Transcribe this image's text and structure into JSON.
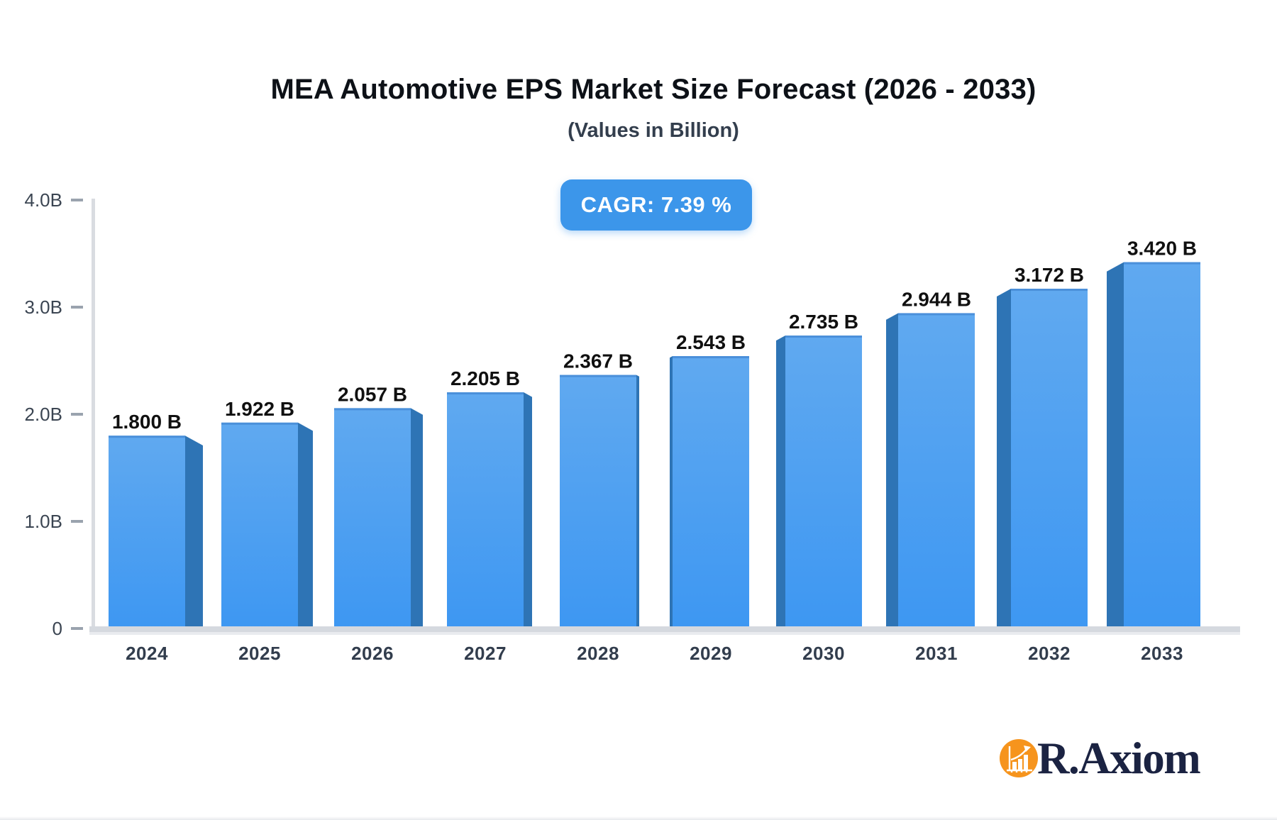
{
  "header": {
    "title": "MEA Automotive EPS Market Size Forecast (2026 - 2033)",
    "subtitle": "(Values in Billion)"
  },
  "badge": {
    "label": "CAGR: 7.39 %"
  },
  "chart_data": {
    "type": "bar",
    "title": "MEA Automotive EPS Market Size Forecast (2026 - 2033)",
    "subtitle": "(Values in Billion)",
    "cagr_label": "CAGR: 7.39 %",
    "categories": [
      "2024",
      "2025",
      "2026",
      "2027",
      "2028",
      "2029",
      "2030",
      "2031",
      "2032",
      "2033"
    ],
    "values": [
      1.8,
      1.922,
      2.057,
      2.205,
      2.367,
      2.543,
      2.735,
      2.944,
      3.172,
      3.42
    ],
    "value_labels": [
      "1.800 B",
      "1.922 B",
      "2.057 B",
      "2.205 B",
      "2.367 B",
      "2.543 B",
      "2.735 B",
      "2.944 B",
      "3.172 B",
      "3.420 B"
    ],
    "xlabel": "",
    "ylabel": "",
    "y_ticks": [
      "4.0B",
      "3.0B",
      "2.0B",
      "1.0B",
      "0"
    ],
    "y_tick_values": [
      4,
      3,
      2,
      1,
      0
    ],
    "ylim": [
      0,
      4
    ],
    "grid": false,
    "legend": "none",
    "bar_style": "3d-extruded",
    "colors": {
      "bar_top": "#60a9f0",
      "bar_bottom": "#3d97f2",
      "bar_top_edge": "#4b90da",
      "bar_side": "#2e74b5",
      "badge_bg": "#3c96ea",
      "axis_line": "#d9dce1",
      "baseline": "#d5d9df",
      "baseline_shadow": "#e9ebef",
      "tick_dash": "#9aa3ae",
      "tick_label": "#3b4552",
      "value_label": "#101010",
      "year_label": "#323d4d"
    }
  },
  "logo": {
    "text": "R.Axiom",
    "icon": "bar-chart-growth-icon",
    "circle_color": "#f6941d",
    "glyph_color": "#ffffff",
    "text_color": "#1b2342"
  }
}
